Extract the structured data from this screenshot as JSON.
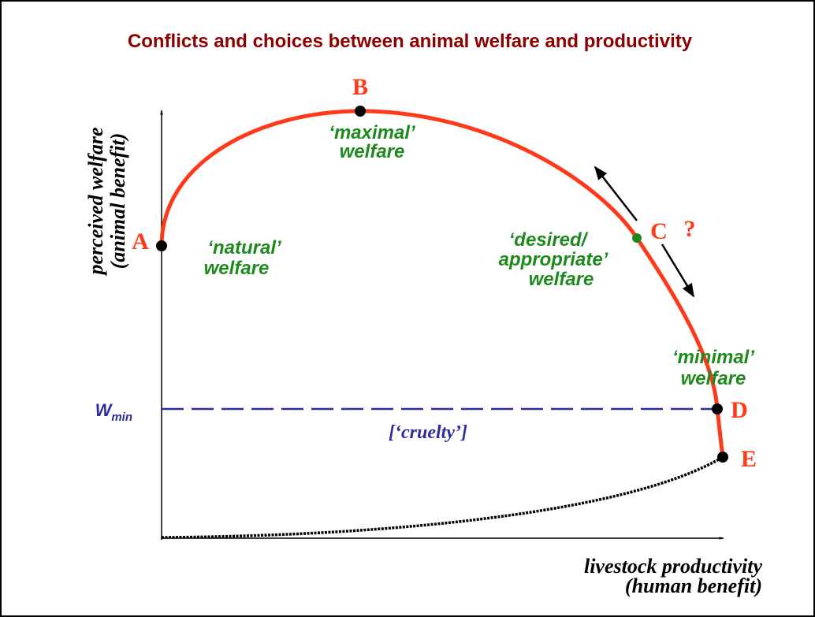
{
  "title": "Conflicts and choices between animal welfare and productivity",
  "y_axis_label": [
    "perceived  welfare",
    "(animal benefit)"
  ],
  "x_axis_label": [
    "livestock productivity",
    "(human benefit)"
  ],
  "points": [
    {
      "label": "A",
      "annotation": [
        "‘natural’",
        "welfare"
      ]
    },
    {
      "label": "B",
      "annotation": [
        "‘maximal’",
        "welfare"
      ]
    },
    {
      "label": "C",
      "annotation": [
        "‘desired/",
        "appropriate’",
        "welfare"
      ]
    },
    {
      "label": "D",
      "annotation": [
        "‘minimal’",
        "welfare"
      ]
    },
    {
      "label": "E",
      "annotation": []
    }
  ],
  "question": "?",
  "threshold": {
    "symbol": "W",
    "subscript": "min",
    "label": "[‘cruelty’]"
  }
}
